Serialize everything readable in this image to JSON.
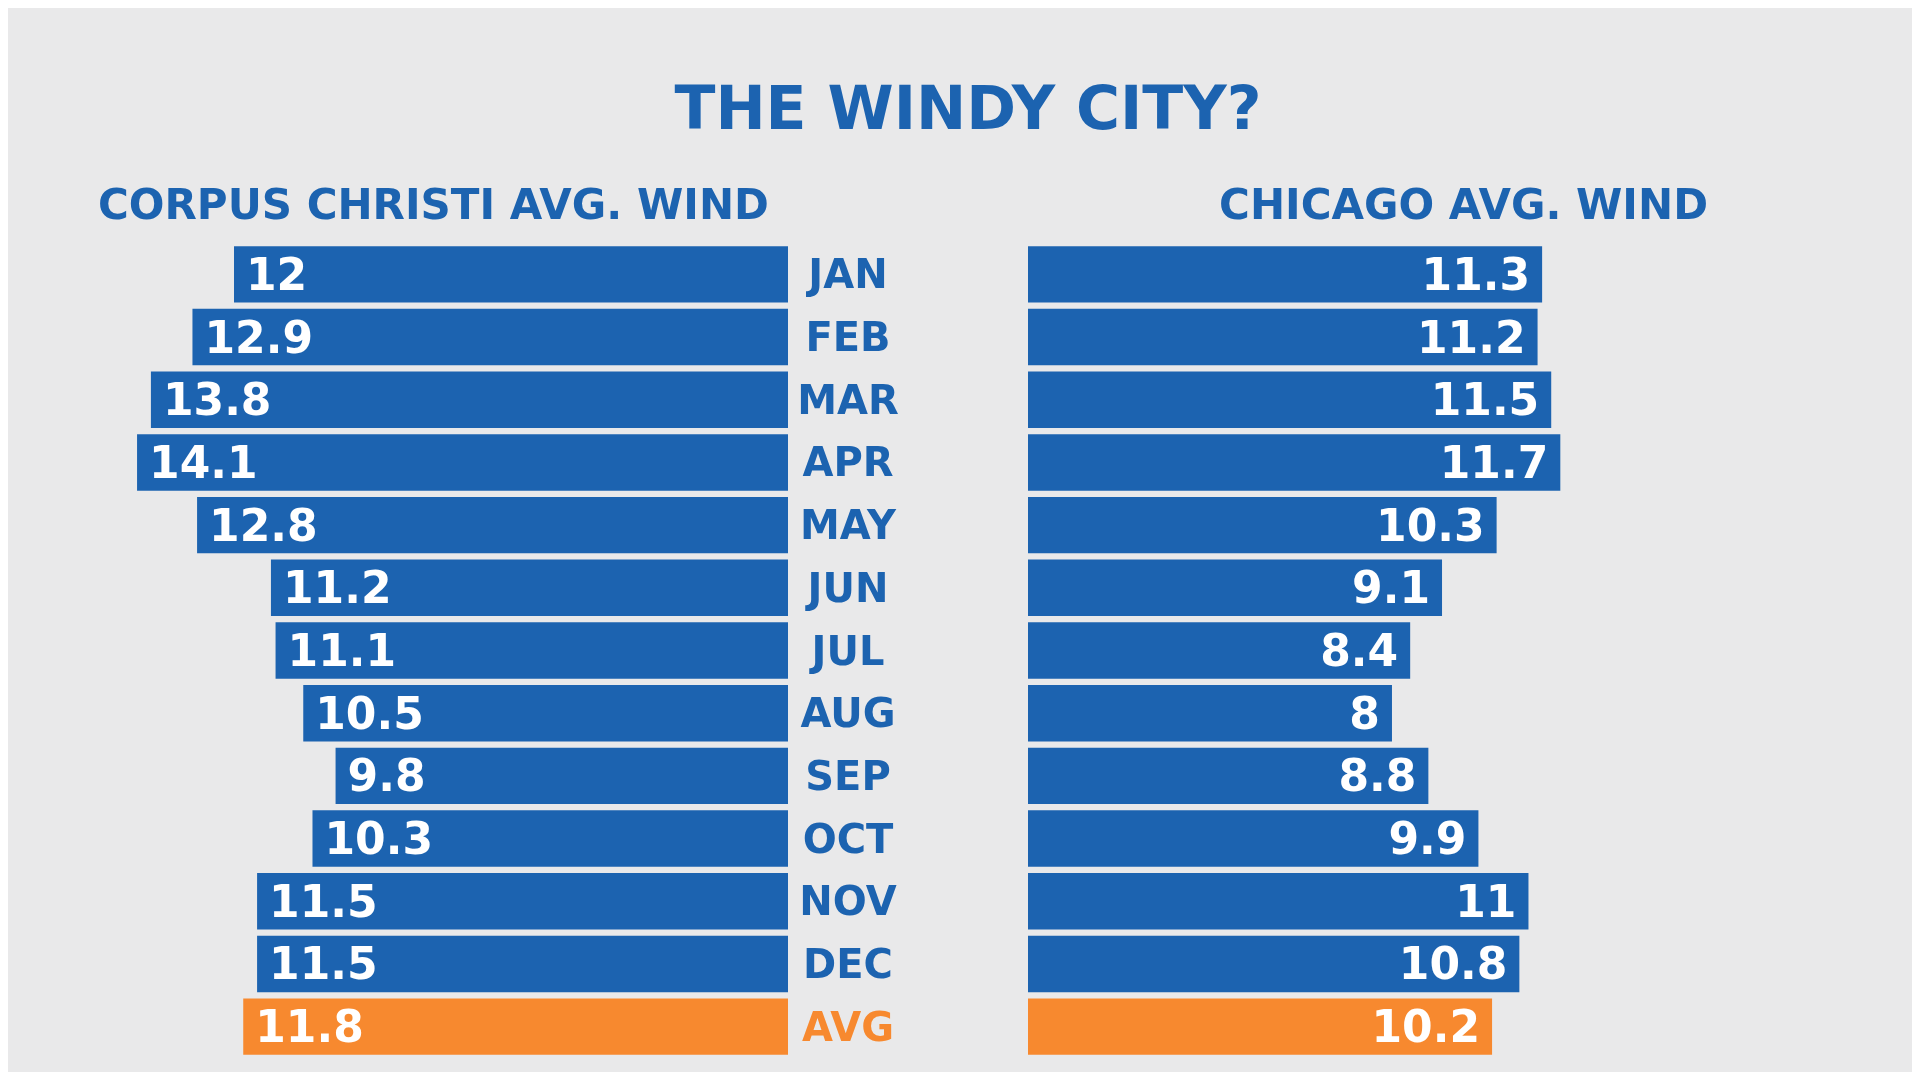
{
  "chart_data": [
    {
      "type": "bar",
      "title": "THE WINDY CITY?",
      "orientation": "horizontal",
      "data_labels": true,
      "tick_labels": "y",
      "grid": false,
      "categories": [
        "JAN",
        "FEB",
        "MAR",
        "APR",
        "MAY",
        "JUN",
        "JUL",
        "AUG",
        "SEP",
        "OCT",
        "NOV",
        "DEC",
        "AVG"
      ],
      "series": [
        {
          "name": "CORPUS CHRISTI AVG. WIND",
          "color": "#1c63b0",
          "values": [
            12,
            12.9,
            13.8,
            14.1,
            12.8,
            11.2,
            11.1,
            10.5,
            9.8,
            10.3,
            11.5,
            11.5,
            11.8
          ],
          "colors": [
            "#1c63b0",
            "#1c63b0",
            "#1c63b0",
            "#1c63b0",
            "#1c63b0",
            "#1c63b0",
            "#1c63b0",
            "#1c63b0",
            "#1c63b0",
            "#1c63b0",
            "#1c63b0",
            "#1c63b0",
            "#f7892f"
          ]
        }
      ]
    },
    {
      "type": "bar",
      "orientation": "horizontal",
      "data_labels": true,
      "tick_labels": false,
      "grid": false,
      "categories": [
        null,
        null,
        null,
        null,
        null,
        null,
        null,
        null,
        null,
        null,
        null,
        null,
        null
      ],
      "series": [
        {
          "name": "CHICAGO AVG. WIND",
          "color": "#1c63b0",
          "values": [
            11.3,
            11.2,
            11.5,
            11.7,
            10.3,
            9.1,
            8.4,
            8,
            8.8,
            9.9,
            11,
            10.8,
            10.2
          ],
          "colors": [
            "#1c63b0",
            "#1c63b0",
            "#1c63b0",
            "#1c63b0",
            "#1c63b0",
            "#1c63b0",
            "#1c63b0",
            "#1c63b0",
            "#1c63b0",
            "#1c63b0",
            "#1c63b0",
            "#1c63b0",
            "#f7892f"
          ]
        }
      ]
    }
  ]
}
